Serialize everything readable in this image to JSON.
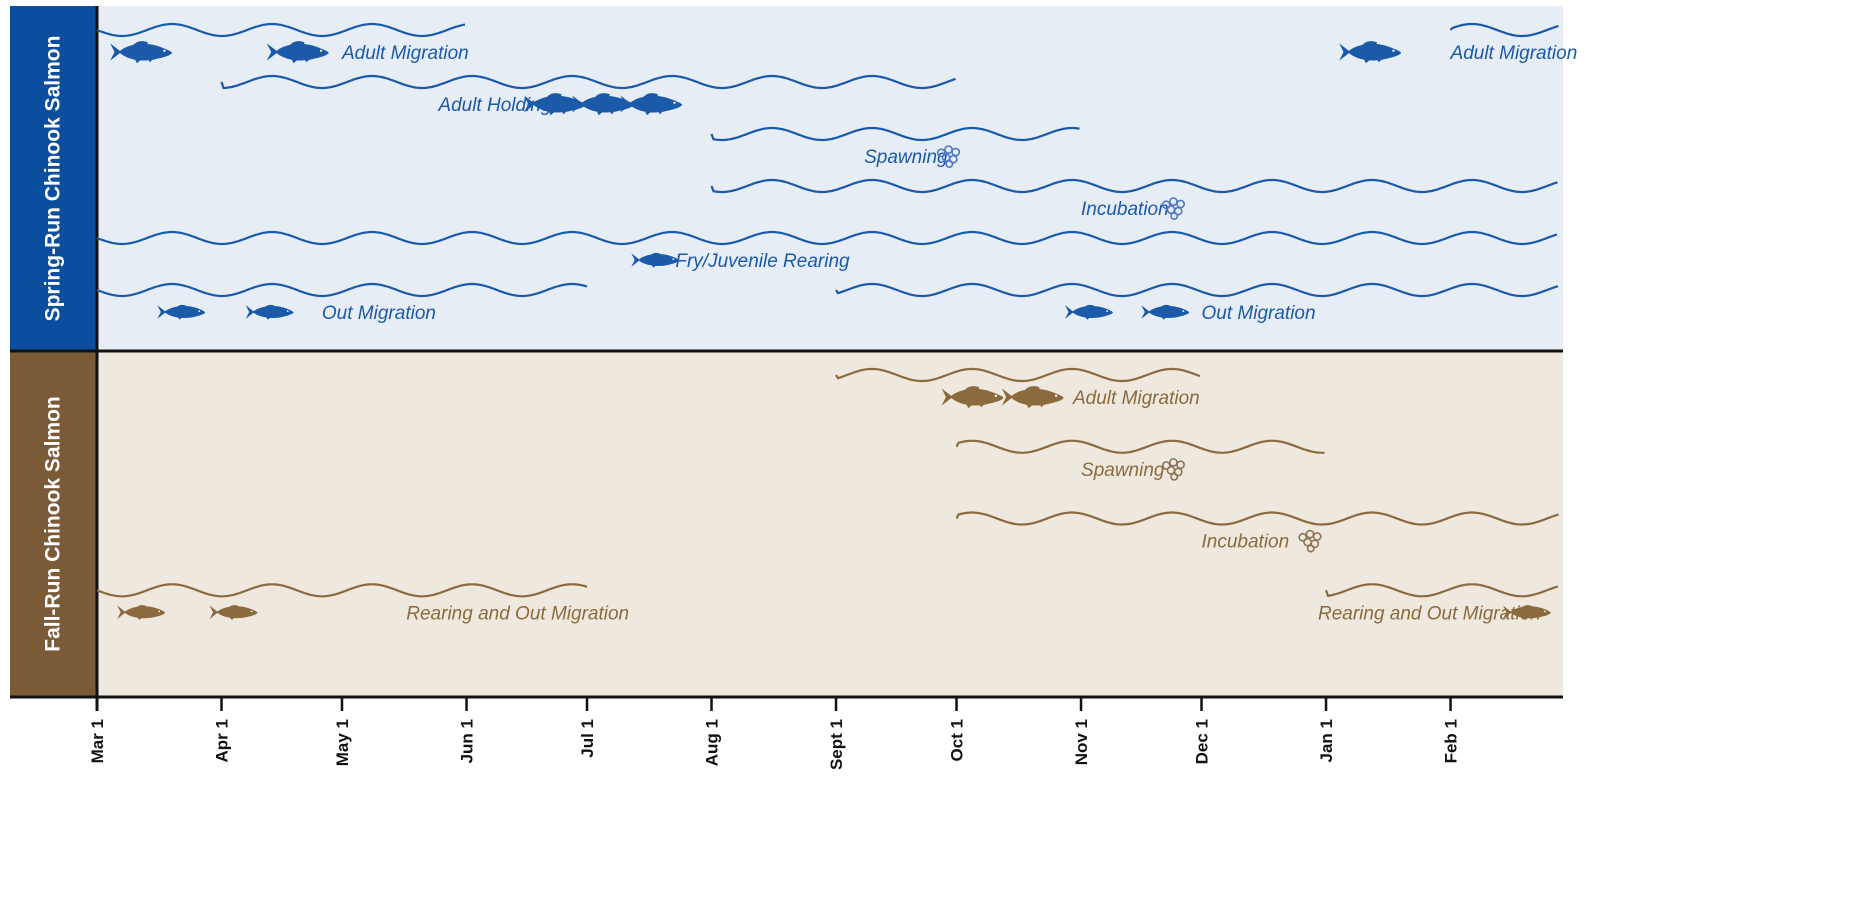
{
  "chart_data": {
    "type": "timeline",
    "title": "",
    "xlabel": "",
    "ylabel": "",
    "x_range": [
      "Mar 1",
      "Feb 28"
    ],
    "ticks": [
      "Mar 1",
      "Apr 1",
      "May 1",
      "Jun 1",
      "Jul 1",
      "Aug 1",
      "Sept 1",
      "Oct 1",
      "Nov 1",
      "Dec 1",
      "Jan 1",
      "Feb 1"
    ],
    "colors": {
      "spring": "#1a5aa8",
      "fall": "#8b6a3e",
      "spring_lane": "#0b4e9e",
      "fall_lane": "#7a5a37",
      "spring_bg": "#e7edf5",
      "fall_bg": "#efe8df"
    },
    "lanes": [
      {
        "name": "Spring-Run Chinook Salmon",
        "key": "spring",
        "activities": [
          {
            "label": "Adult Migration",
            "periods": [
              [
                "Mar 1",
                "Jun 1"
              ],
              [
                "Feb 1",
                "Feb 28"
              ]
            ],
            "label_dates": [
              "May 1",
              "Feb 1"
            ],
            "icon": "adult-fish-icon",
            "icon_dates": [
              "Mar 12",
              "Apr 20",
              "Jan 12"
            ]
          },
          {
            "label": "Adult Holding",
            "periods": [
              [
                "Apr 1",
                "Oct 1"
              ]
            ],
            "label_dates": [
              "May 25"
            ],
            "icon": "adult-fish-icon",
            "icon_dates": [
              "Jun 23",
              "Jul 5",
              "Jul 17"
            ]
          },
          {
            "label": "Spawning",
            "periods": [
              [
                "Aug 1",
                "Nov 1"
              ]
            ],
            "label_dates": [
              "Sep 8"
            ],
            "icon": "egg-cluster-icon",
            "icon_dates": [
              "Sep 29"
            ]
          },
          {
            "label": "Incubation",
            "periods": [
              [
                "Aug 1",
                "Feb 28"
              ]
            ],
            "label_dates": [
              "Nov 1"
            ],
            "icon": "egg-cluster-icon",
            "icon_dates": [
              "Nov 24"
            ]
          },
          {
            "label": "Fry/Juvenile Rearing",
            "periods": [
              [
                "Mar 1",
                "Feb 28"
              ]
            ],
            "label_dates": [
              "Jul 23"
            ],
            "icon": "juvenile-fish-icon",
            "icon_dates": [
              "Jul 18"
            ]
          },
          {
            "label": "Out Migration",
            "periods": [
              [
                "Mar 1",
                "Jul 1"
              ],
              [
                "Sept 1",
                "Feb 28"
              ]
            ],
            "label_dates": [
              "Apr 26",
              "Dec 1"
            ],
            "icon": "juvenile-fish-icon",
            "icon_dates": [
              "Mar 22",
              "Apr 13",
              "Nov 3",
              "Nov 22"
            ]
          }
        ]
      },
      {
        "name": "Fall-Run Chinook Salmon",
        "key": "fall",
        "activities": [
          {
            "label": "Adult Migration",
            "periods": [
              [
                "Sept 1",
                "Dec 1"
              ]
            ],
            "label_dates": [
              "Oct 30"
            ],
            "icon": "adult-fish-icon",
            "icon_dates": [
              "Oct 5",
              "Oct 20"
            ]
          },
          {
            "label": "Spawning",
            "periods": [
              [
                "Oct 1",
                "Jan 1"
              ]
            ],
            "label_dates": [
              "Nov 1"
            ],
            "icon": "egg-cluster-icon",
            "icon_dates": [
              "Nov 24"
            ]
          },
          {
            "label": "Incubation",
            "periods": [
              [
                "Oct 1",
                "Feb 28"
              ]
            ],
            "label_dates": [
              "Dec 1"
            ],
            "icon": "egg-cluster-icon",
            "icon_dates": [
              "Dec 28"
            ]
          },
          {
            "label": "Rearing and Out Migration",
            "periods": [
              [
                "Mar 1",
                "Jul 1"
              ],
              [
                "Jan 1",
                "Feb 28"
              ]
            ],
            "label_dates": [
              "May 17",
              "Dec 30"
            ],
            "icon": "juvenile-fish-icon",
            "icon_dates": [
              "Mar 12",
              "Apr 4",
              "Feb 20"
            ]
          }
        ]
      }
    ]
  }
}
